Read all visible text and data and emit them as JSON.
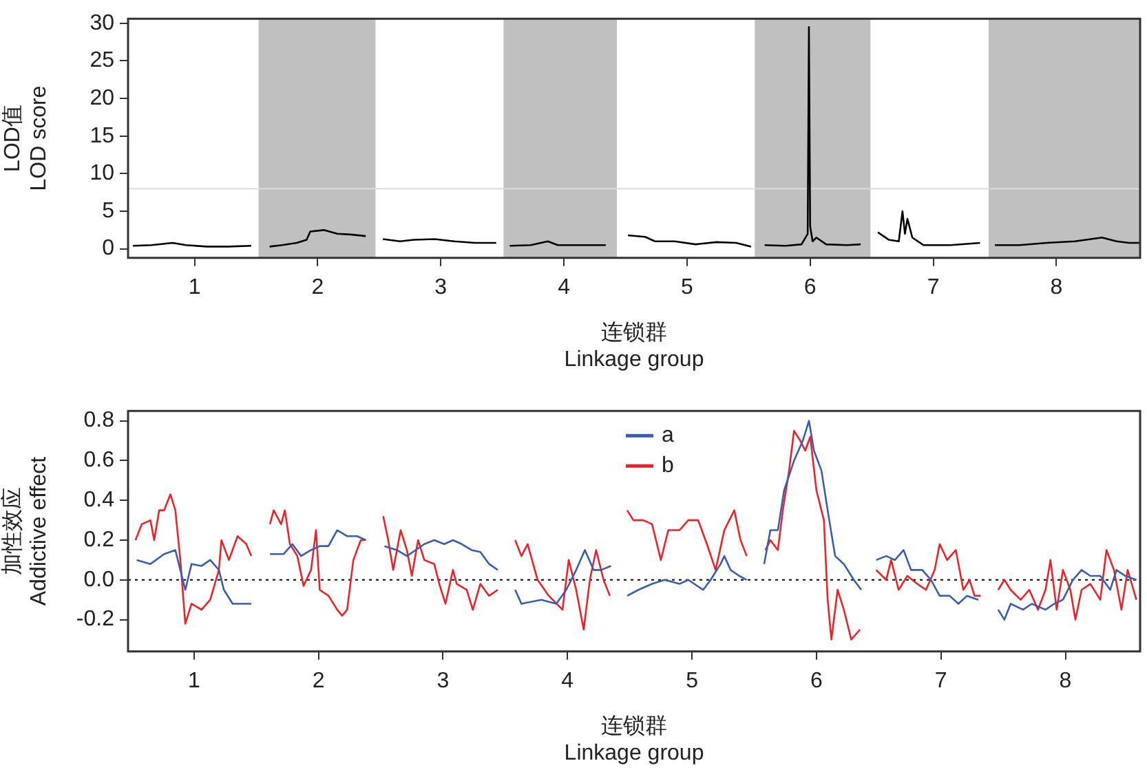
{
  "chart_data": [
    {
      "type": "line",
      "ylabel": "LOD值\nLOD score",
      "xlabel": "连锁群\nLinkage group",
      "xlim": [
        0.46,
        8.68
      ],
      "ylim": [
        -1.2,
        30.6
      ],
      "xticks": [
        1,
        2,
        3,
        4,
        5,
        6,
        7,
        8
      ],
      "yticks": [
        0,
        5,
        10,
        15,
        20,
        25,
        30
      ],
      "grid": false,
      "legend": false,
      "marker": "none",
      "line_style": "solid",
      "bands": [
        {
          "axis": "x",
          "from": 1.52,
          "to": 2.47,
          "color": "#c0c0c0"
        },
        {
          "axis": "x",
          "from": 3.51,
          "to": 4.43,
          "color": "#c0c0c0"
        },
        {
          "axis": "x",
          "from": 5.55,
          "to": 6.49,
          "color": "#c0c0c0"
        },
        {
          "axis": "x",
          "from": 7.45,
          "to": 8.68,
          "color": "#c0c0c0"
        }
      ],
      "ref_lines": [
        {
          "axis": "y",
          "value": 8,
          "color": "#dcdcdc",
          "line_style": "solid"
        }
      ],
      "series": [
        {
          "color": "#000000",
          "x": [
            0.5,
            0.65,
            0.82,
            0.93,
            1.1,
            1.27,
            1.46,
            1.53,
            1.61,
            1.71,
            1.83,
            1.91,
            1.94,
            2.05,
            2.16,
            2.27,
            2.39,
            2.46,
            2.53,
            2.67,
            2.78,
            2.95,
            3.11,
            3.28,
            3.45,
            3.5,
            3.56,
            3.73,
            3.87,
            3.95,
            4.12,
            4.34,
            4.43,
            4.52,
            4.66,
            4.74,
            4.9,
            5.07,
            5.24,
            5.4,
            5.52,
            5.58,
            5.63,
            5.8,
            5.93,
            5.98,
            5.99,
            6.0,
            6.02,
            6.05,
            6.13,
            6.3,
            6.41,
            6.48,
            6.55,
            6.64,
            6.72,
            6.75,
            6.77,
            6.79,
            6.83,
            6.92,
            7.14,
            7.38,
            7.44,
            7.5,
            7.7,
            7.92,
            8.15,
            8.37,
            8.49,
            8.59,
            8.68
          ],
          "values": [
            0.4,
            0.5,
            0.8,
            0.5,
            0.3,
            0.3,
            0.4,
            null,
            0.3,
            0.5,
            0.8,
            1.2,
            2.3,
            2.5,
            2.0,
            1.9,
            1.7,
            null,
            1.3,
            1.0,
            1.2,
            1.3,
            1.0,
            0.8,
            0.8,
            null,
            0.4,
            0.5,
            1.0,
            0.5,
            0.5,
            0.5,
            null,
            1.8,
            1.6,
            1.0,
            1.0,
            0.6,
            0.9,
            0.8,
            0.3,
            null,
            0.5,
            0.4,
            0.6,
            2,
            29.5,
            3,
            1,
            1.5,
            0.6,
            0.5,
            0.6,
            null,
            2.2,
            1.2,
            1,
            5,
            2,
            4,
            1.5,
            0.5,
            0.5,
            0.8,
            null,
            0.5,
            0.5,
            0.8,
            1.0,
            1.5,
            1.0,
            0.8,
            0.8
          ]
        }
      ]
    },
    {
      "type": "line",
      "ylabel": "加性效应\nAddictive effect",
      "xlabel": "连锁群\nLinkage group",
      "xlim": [
        0.47,
        8.6
      ],
      "ylim": [
        -0.36,
        0.85
      ],
      "xticks": [
        1,
        2,
        3,
        4,
        5,
        6,
        7,
        8
      ],
      "yticks": [
        {
          "value": -0.2,
          "label": "-0.2"
        },
        {
          "value": 0,
          "label": "0.0"
        },
        {
          "value": 0.2,
          "label": "0.2"
        },
        {
          "value": 0.4,
          "label": "0.4"
        },
        {
          "value": 0.6,
          "label": "0.6"
        },
        {
          "value": 0.8,
          "label": "0.8"
        }
      ],
      "grid": false,
      "legend": "top",
      "marker": "none",
      "line_style": "solid",
      "ref_lines": [
        {
          "axis": "y",
          "value": 0,
          "color": "#000000",
          "line_style": "dotted"
        }
      ],
      "series": [
        {
          "name": "a",
          "color": "#3a5dae",
          "x": [
            0.54,
            0.65,
            0.76,
            0.85,
            0.89,
            0.93,
            0.98,
            1.06,
            1.13,
            1.2,
            1.24,
            1.31,
            1.38,
            1.46,
            1.53,
            1.61,
            1.72,
            1.79,
            1.86,
            1.94,
            2.01,
            2.08,
            2.15,
            2.23,
            2.31,
            2.38,
            2.45,
            2.53,
            2.63,
            2.71,
            2.78,
            2.85,
            2.93,
            3.01,
            3.08,
            3.15,
            3.23,
            3.3,
            3.37,
            3.44,
            3.51,
            3.58,
            3.63,
            3.79,
            3.91,
            3.99,
            4.07,
            4.14,
            4.21,
            4.27,
            4.35,
            4.41,
            4.48,
            4.57,
            4.68,
            4.78,
            4.9,
            4.97,
            5.09,
            5.15,
            5.23,
            5.26,
            5.31,
            5.38,
            5.44,
            5.51,
            5.58,
            5.63,
            5.69,
            5.74,
            5.82,
            5.89,
            5.94,
            5.98,
            6.04,
            6.09,
            6.15,
            6.22,
            6.3,
            6.36,
            6.43,
            6.48,
            6.56,
            6.63,
            6.7,
            6.76,
            6.85,
            6.92,
            6.99,
            7.07,
            7.14,
            7.21,
            7.3,
            7.37,
            7.46,
            7.51,
            7.56,
            7.66,
            7.73,
            7.84,
            7.91,
            7.98,
            8.06,
            8.13,
            8.2,
            8.28,
            8.36,
            8.41,
            8.48,
            8.57
          ],
          "values": [
            0.1,
            0.08,
            0.13,
            0.15,
            0.05,
            -0.05,
            0.08,
            0.07,
            0.1,
            0.05,
            -0.05,
            -0.12,
            -0.12,
            -0.12,
            null,
            0.13,
            0.13,
            0.18,
            0.12,
            0.15,
            0.17,
            0.17,
            0.25,
            0.22,
            0.22,
            0.2,
            null,
            0.17,
            0.15,
            0.12,
            0.15,
            0.18,
            0.2,
            0.18,
            0.2,
            0.18,
            0.15,
            0.14,
            0.08,
            0.05,
            null,
            -0.05,
            -0.12,
            -0.1,
            -0.12,
            -0.05,
            0.05,
            0.15,
            0.05,
            0.05,
            0.07,
            null,
            -0.08,
            -0.05,
            -0.02,
            0.0,
            -0.02,
            0.0,
            -0.05,
            0.0,
            0.08,
            0.12,
            0.05,
            0.02,
            0.0,
            null,
            0.08,
            0.25,
            0.25,
            0.45,
            0.6,
            0.7,
            0.8,
            0.65,
            0.55,
            0.35,
            0.12,
            0.08,
            0.0,
            -0.05,
            null,
            0.1,
            0.12,
            0.1,
            0.15,
            0.05,
            0.05,
            0.0,
            -0.08,
            -0.08,
            -0.12,
            -0.08,
            -0.1,
            null,
            -0.15,
            -0.2,
            -0.12,
            -0.15,
            -0.12,
            -0.15,
            -0.12,
            -0.1,
            0.0,
            0.05,
            0.02,
            0.02,
            -0.05,
            0.05,
            0.02,
            0.0
          ]
        },
        {
          "name": "b",
          "color": "#e8232a",
          "x": [
            0.53,
            0.58,
            0.65,
            0.68,
            0.72,
            0.76,
            0.81,
            0.85,
            0.89,
            0.93,
            0.98,
            1.06,
            1.13,
            1.2,
            1.22,
            1.28,
            1.35,
            1.42,
            1.46,
            1.53,
            1.61,
            1.64,
            1.7,
            1.73,
            1.77,
            1.83,
            1.88,
            1.94,
            1.98,
            2.01,
            2.08,
            2.15,
            2.19,
            2.23,
            2.28,
            2.34,
            2.38,
            2.45,
            2.52,
            2.56,
            2.6,
            2.66,
            2.71,
            2.75,
            2.8,
            2.85,
            2.93,
            2.97,
            3.02,
            3.08,
            3.11,
            3.19,
            3.24,
            3.3,
            3.37,
            3.44,
            3.51,
            3.58,
            3.63,
            3.68,
            3.76,
            3.85,
            3.96,
            4.01,
            4.07,
            4.13,
            4.18,
            4.23,
            4.29,
            4.34,
            4.41,
            4.48,
            4.53,
            4.61,
            4.68,
            4.75,
            4.81,
            4.9,
            4.97,
            5.05,
            5.12,
            5.19,
            5.26,
            5.34,
            5.39,
            5.44,
            5.51,
            5.59,
            5.63,
            5.69,
            5.73,
            5.78,
            5.82,
            5.87,
            5.91,
            5.95,
            6.0,
            6.06,
            6.09,
            6.12,
            6.17,
            6.22,
            6.28,
            6.35,
            6.43,
            6.48,
            6.56,
            6.6,
            6.66,
            6.73,
            6.81,
            6.88,
            6.95,
            6.99,
            7.05,
            7.12,
            7.18,
            7.23,
            7.27,
            7.32,
            7.37,
            7.46,
            7.51,
            7.56,
            7.64,
            7.71,
            7.78,
            7.84,
            7.88,
            7.93,
            7.98,
            8.04,
            8.08,
            8.13,
            8.2,
            8.28,
            8.33,
            8.39,
            8.45,
            8.5,
            8.57
          ],
          "values": [
            0.2,
            0.28,
            0.3,
            0.2,
            0.35,
            0.35,
            0.43,
            0.35,
            0.1,
            -0.22,
            -0.12,
            -0.15,
            -0.1,
            0.05,
            0.2,
            0.1,
            0.22,
            0.18,
            0.12,
            null,
            0.28,
            0.35,
            0.28,
            0.35,
            0.18,
            0.12,
            -0.03,
            0.05,
            0.25,
            -0.05,
            -0.08,
            -0.15,
            -0.18,
            -0.15,
            0.1,
            0.2,
            0.2,
            null,
            0.32,
            0.2,
            0.05,
            0.25,
            0.15,
            0.02,
            0.2,
            0.1,
            0.08,
            -0.02,
            -0.12,
            0.05,
            -0.02,
            -0.05,
            -0.15,
            -0.02,
            -0.08,
            -0.05,
            null,
            0.2,
            0.12,
            0.18,
            0.0,
            -0.08,
            -0.15,
            0.1,
            -0.05,
            -0.25,
            0.0,
            0.15,
            0.0,
            -0.08,
            null,
            0.35,
            0.3,
            0.3,
            0.28,
            0.1,
            0.25,
            0.25,
            0.3,
            0.3,
            0.18,
            0.05,
            0.25,
            0.35,
            0.2,
            0.12,
            null,
            0.15,
            0.2,
            0.15,
            0.35,
            0.55,
            0.75,
            0.7,
            0.65,
            0.72,
            0.45,
            0.3,
            -0.1,
            -0.3,
            -0.05,
            -0.15,
            -0.3,
            -0.25,
            null,
            0.05,
            0.0,
            0.1,
            -0.05,
            0.02,
            -0.02,
            -0.05,
            0.05,
            0.18,
            0.1,
            0.15,
            -0.05,
            0.0,
            -0.08,
            -0.08,
            null,
            -0.05,
            0.0,
            -0.05,
            -0.1,
            -0.05,
            -0.15,
            -0.05,
            0.1,
            -0.15,
            0.05,
            -0.05,
            -0.2,
            -0.05,
            -0.02,
            -0.1,
            0.15,
            0.05,
            -0.15,
            0.05,
            -0.1
          ]
        }
      ]
    }
  ]
}
